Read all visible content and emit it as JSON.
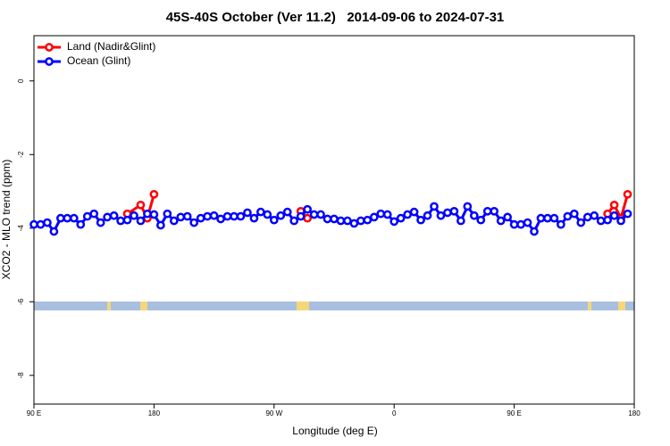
{
  "chart_data": {
    "type": "line",
    "title": "45S-40S October (Ver 11.2)   2014-09-06 to 2024-07-31",
    "xlabel": "Longitude (deg E)",
    "ylabel": "XCO2 - MLO trend (ppm)",
    "xlim": [
      90,
      540
    ],
    "ylim": [
      -8.78,
      1.23
    ],
    "xticks": [
      {
        "value": 90,
        "label": "90 E"
      },
      180,
      {
        "value": 270,
        "label": "90 W"
      },
      {
        "value": 360,
        "label": "0"
      },
      {
        "value": 450,
        "label": "90 E"
      },
      {
        "value": 540,
        "label": "180"
      }
    ],
    "yticks": [
      0,
      -2,
      -4,
      -6,
      -8
    ],
    "legend": "top-left",
    "series": [
      {
        "name": "Land (Nadir&Glint)",
        "color": "#ff0000",
        "x": [
          160,
          170,
          175,
          180,
          null,
          290,
          295,
          null,
          520,
          525,
          530,
          535
        ],
        "values": [
          -3.61,
          -3.37,
          -3.73,
          -3.08,
          null,
          -3.54,
          -3.73,
          null,
          -3.61,
          -3.37,
          -3.73,
          -3.08
        ]
      },
      {
        "name": "Ocean (Glint)",
        "color": "#0000ff",
        "x": [
          90,
          95,
          100,
          105,
          110,
          115,
          120,
          125,
          130,
          135,
          140,
          145,
          150,
          155,
          160,
          165,
          170,
          175,
          180,
          185,
          190,
          195,
          200,
          205,
          210,
          215,
          220,
          225,
          230,
          235,
          240,
          245,
          250,
          255,
          260,
          265,
          270,
          275,
          280,
          285,
          290,
          295,
          300,
          305,
          310,
          315,
          320,
          325,
          330,
          335,
          340,
          345,
          350,
          355,
          360,
          365,
          370,
          375,
          380,
          385,
          390,
          395,
          400,
          405,
          410,
          415,
          420,
          425,
          430,
          435,
          440,
          445,
          450,
          455,
          460,
          465,
          470,
          475,
          480,
          485,
          490,
          495,
          500,
          505,
          510,
          515,
          520,
          525,
          530,
          535
        ],
        "values": [
          -3.9,
          -3.9,
          -3.85,
          -4.09,
          -3.73,
          -3.73,
          -3.73,
          -3.9,
          -3.68,
          -3.61,
          -3.85,
          -3.7,
          -3.66,
          -3.8,
          -3.78,
          -3.66,
          -3.8,
          -3.61,
          -3.63,
          -3.92,
          -3.61,
          -3.8,
          -3.7,
          -3.68,
          -3.85,
          -3.73,
          -3.68,
          -3.66,
          -3.75,
          -3.68,
          -3.68,
          -3.68,
          -3.58,
          -3.73,
          -3.56,
          -3.63,
          -3.78,
          -3.66,
          -3.56,
          -3.8,
          -3.68,
          -3.49,
          -3.63,
          -3.63,
          -3.75,
          -3.75,
          -3.8,
          -3.8,
          -3.87,
          -3.8,
          -3.78,
          -3.7,
          -3.61,
          -3.63,
          -3.82,
          -3.73,
          -3.63,
          -3.56,
          -3.78,
          -3.66,
          -3.41,
          -3.66,
          -3.58,
          -3.54,
          -3.8,
          -3.41,
          -3.66,
          -3.78,
          -3.54,
          -3.54,
          -3.8,
          -3.7,
          -3.9,
          -3.9,
          -3.85,
          -4.09,
          -3.73,
          -3.73,
          -3.73,
          -3.9,
          -3.68,
          -3.61,
          -3.85,
          -3.7,
          -3.66,
          -3.8,
          -3.78,
          -3.66,
          -3.8,
          -3.61
        ]
      }
    ]
  }
}
